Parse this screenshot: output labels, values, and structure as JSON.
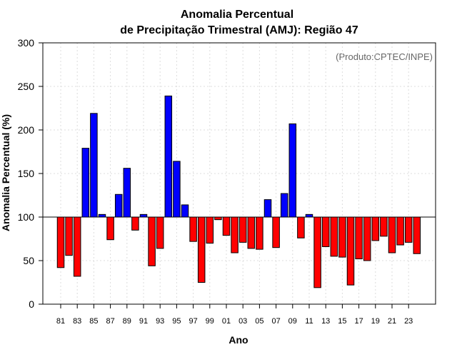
{
  "chart_data": {
    "type": "bar",
    "title": "Anomalia Percentual",
    "subtitle": "de Precipitação Trimestral (AMJ): Região 47",
    "credit": "(Produto:CPTEC/INPE)",
    "xlabel": "Ano",
    "ylabel": "Anomalia Percentual (%)",
    "ylim": [
      0,
      300
    ],
    "yticks": [
      0,
      50,
      100,
      150,
      200,
      250,
      300
    ],
    "baseline": 100,
    "grid": true,
    "colors": {
      "above": "#0000ff",
      "below": "#ff0000",
      "outline": "#000000",
      "grid": "#dddddd"
    },
    "categories": [
      "1981",
      "1982",
      "1983",
      "1984",
      "1985",
      "1986",
      "1987",
      "1988",
      "1989",
      "1990",
      "1991",
      "1992",
      "1993",
      "1994",
      "1995",
      "1996",
      "1997",
      "1998",
      "1999",
      "2000",
      "2001",
      "2002",
      "2003",
      "2004",
      "2005",
      "2006",
      "2007",
      "2008",
      "2009",
      "2010",
      "2011",
      "2012",
      "2013",
      "2014",
      "2015",
      "2016",
      "2017",
      "2018",
      "2019",
      "2020",
      "2021",
      "2022",
      "2023",
      "2024"
    ],
    "values": [
      42,
      56,
      32,
      179,
      219,
      103,
      74,
      126,
      156,
      85,
      103,
      44,
      64,
      239,
      164,
      114,
      72,
      25,
      70,
      97,
      79,
      59,
      71,
      64,
      63,
      120,
      65,
      127,
      207,
      76,
      103,
      19,
      66,
      55,
      54,
      22,
      52,
      50,
      73,
      78,
      59,
      68,
      71,
      58
    ],
    "xtick_labels": [
      "81",
      "83",
      "85",
      "87",
      "89",
      "91",
      "93",
      "95",
      "97",
      "99",
      "01",
      "03",
      "05",
      "07",
      "09",
      "11",
      "13",
      "15",
      "17",
      "19",
      "21",
      "23"
    ]
  }
}
